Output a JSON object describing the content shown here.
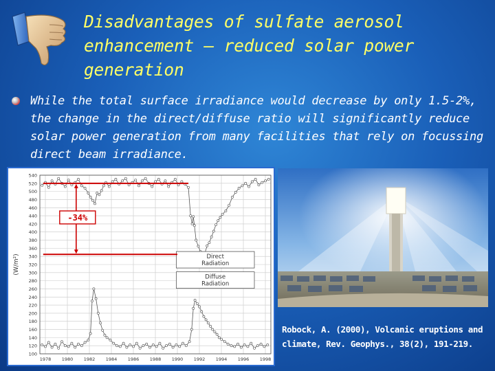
{
  "slide": {
    "title": "Disadvantages of sulfate aerosol enhancement – reduced solar power generation",
    "bullet_text": "While the total surface irradiance would decrease by only 1.5-2%, the change in the direct/diffuse ratio will significantly reduce solar power generation from many facilities that rely on focussing direct beam irradiance.",
    "citation": "Robock, A. (2000), Volcanic eruptions and climate, Rev. Geophys., 38(2), 191-219.",
    "icons": {
      "thumb": "thumbs-down-icon",
      "bullet": "bullet-ball-icon"
    },
    "colors": {
      "title": "#ffff66",
      "text": "#ffffff",
      "annotation": "#cc0000",
      "background": "#1a5fb8"
    }
  },
  "chart_data": {
    "type": "line",
    "ylabel": "(W/m²)",
    "ylim": [
      100,
      540
    ],
    "xlim": [
      1977.5,
      1998.5
    ],
    "yticks": [
      "540",
      "520",
      "500",
      "480",
      "460",
      "440",
      "420",
      "400",
      "380",
      "360",
      "340",
      "320",
      "300",
      "280",
      "260",
      "240",
      "220",
      "200",
      "180",
      "160",
      "140",
      "120",
      "100"
    ],
    "xticks": [
      "1978",
      "1980",
      "1982",
      "1984",
      "1986",
      "1988",
      "1990",
      "1992",
      "1994",
      "1996",
      "1998"
    ],
    "legend": [
      "Direct Radiation",
      "Diffuse Radiation"
    ],
    "annotation": "-34%",
    "series": [
      {
        "name": "Direct Radiation",
        "x": [
          1977.7,
          1978.0,
          1978.3,
          1978.6,
          1978.9,
          1979.2,
          1979.5,
          1979.8,
          1980.1,
          1980.4,
          1980.7,
          1981.0,
          1981.3,
          1981.6,
          1981.9,
          1982.1,
          1982.3,
          1982.5,
          1982.7,
          1982.9,
          1983.1,
          1983.3,
          1983.5,
          1983.8,
          1984.1,
          1984.4,
          1984.7,
          1985.0,
          1985.3,
          1985.6,
          1985.9,
          1986.2,
          1986.5,
          1986.8,
          1987.1,
          1987.4,
          1987.7,
          1988.0,
          1988.3,
          1988.6,
          1988.9,
          1989.2,
          1989.5,
          1989.8,
          1990.1,
          1990.4,
          1990.7,
          1991.0,
          1991.2,
          1991.35,
          1991.45,
          1991.55,
          1991.7,
          1991.9,
          1992.1,
          1992.3,
          1992.5,
          1992.7,
          1992.9,
          1993.1,
          1993.3,
          1993.5,
          1993.7,
          1993.9,
          1994.1,
          1994.4,
          1994.7,
          1995.0,
          1995.3,
          1995.6,
          1995.9,
          1996.2,
          1996.5,
          1996.8,
          1997.1,
          1997.4,
          1997.7,
          1998.0,
          1998.3
        ],
        "values": [
          515,
          522,
          510,
          526,
          518,
          532,
          520,
          512,
          528,
          516,
          522,
          530,
          514,
          508,
          496,
          486,
          478,
          470,
          496,
          492,
          502,
          514,
          522,
          512,
          524,
          530,
          518,
          526,
          532,
          516,
          522,
          528,
          514,
          526,
          532,
          520,
          512,
          524,
          530,
          518,
          526,
          512,
          522,
          530,
          516,
          524,
          518,
          510,
          440,
          420,
          438,
          416,
          380,
          365,
          352,
          342,
          348,
          366,
          374,
          388,
          402,
          418,
          428,
          436,
          444,
          452,
          466,
          486,
          498,
          508,
          514,
          520,
          512,
          524,
          530,
          516,
          522,
          526,
          530
        ]
      },
      {
        "name": "Diffuse Radiation",
        "x": [
          1977.7,
          1978.0,
          1978.3,
          1978.6,
          1978.9,
          1979.2,
          1979.5,
          1979.8,
          1980.1,
          1980.4,
          1980.7,
          1981.0,
          1981.3,
          1981.6,
          1981.9,
          1982.1,
          1982.25,
          1982.4,
          1982.6,
          1982.8,
          1983.0,
          1983.2,
          1983.4,
          1983.6,
          1983.9,
          1984.2,
          1984.5,
          1984.8,
          1985.1,
          1985.4,
          1985.7,
          1986.0,
          1986.3,
          1986.6,
          1986.9,
          1987.2,
          1987.5,
          1987.8,
          1988.1,
          1988.4,
          1988.7,
          1989.0,
          1989.3,
          1989.6,
          1989.9,
          1990.2,
          1990.5,
          1990.8,
          1991.1,
          1991.3,
          1991.45,
          1991.6,
          1991.8,
          1992.0,
          1992.2,
          1992.4,
          1992.6,
          1992.8,
          1993.0,
          1993.2,
          1993.4,
          1993.6,
          1993.8,
          1994.0,
          1994.3,
          1994.6,
          1994.9,
          1995.2,
          1995.5,
          1995.8,
          1996.1,
          1996.4,
          1996.7,
          1997.0,
          1997.3,
          1997.6,
          1997.9,
          1998.2
        ],
        "values": [
          122,
          118,
          128,
          116,
          124,
          114,
          130,
          120,
          118,
          126,
          116,
          124,
          120,
          128,
          134,
          150,
          230,
          260,
          236,
          200,
          176,
          158,
          146,
          140,
          134,
          126,
          120,
          118,
          126,
          116,
          122,
          118,
          126,
          114,
          120,
          124,
          116,
          122,
          118,
          126,
          114,
          120,
          124,
          116,
          122,
          118,
          126,
          120,
          130,
          160,
          212,
          232,
          224,
          216,
          204,
          192,
          184,
          176,
          168,
          160,
          154,
          148,
          140,
          136,
          130,
          124,
          120,
          118,
          124,
          116,
          122,
          118,
          126,
          114,
          120,
          124,
          118,
          122
        ]
      }
    ]
  }
}
